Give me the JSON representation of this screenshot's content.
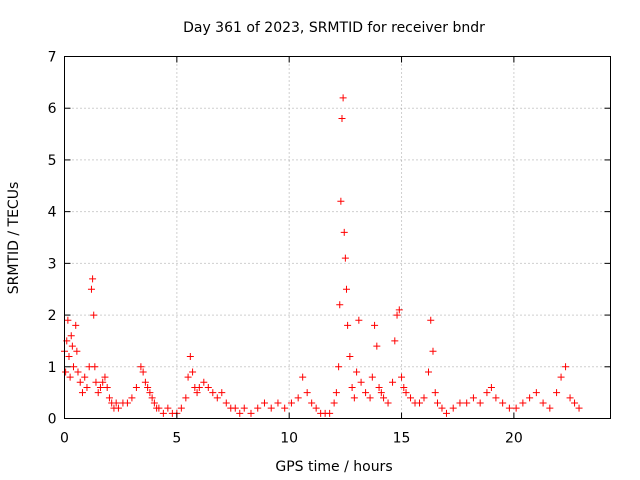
{
  "chart_data": {
    "type": "scatter",
    "title": "Day 361 of 2023, SRMTID for receiver bndr",
    "xlabel": "GPS time / hours",
    "ylabel": "SRMTID / TECUs",
    "xlim": [
      0,
      24.3
    ],
    "ylim": [
      0,
      7
    ],
    "xticks": [
      0,
      5,
      10,
      15,
      20
    ],
    "yticks": [
      0,
      1,
      2,
      3,
      4,
      5,
      6,
      7
    ],
    "xtick_labels": [
      "0",
      "5",
      "10",
      "15",
      "20"
    ],
    "ytick_labels": [
      "0",
      "1",
      "2",
      "3",
      "4",
      "5",
      "6",
      "7"
    ],
    "grid": true,
    "marker": "+",
    "color": "#ff0000",
    "series": [
      {
        "name": "bndr",
        "x": [
          0.0,
          0.05,
          0.1,
          0.15,
          0.2,
          0.25,
          0.3,
          0.35,
          0.4,
          0.5,
          0.55,
          0.6,
          0.7,
          0.8,
          0.9,
          1.0,
          1.1,
          1.2,
          1.25,
          1.3,
          1.35,
          1.4,
          1.5,
          1.6,
          1.7,
          1.8,
          1.9,
          2.0,
          2.1,
          2.2,
          2.3,
          2.4,
          2.6,
          2.8,
          3.0,
          3.2,
          3.4,
          3.5,
          3.6,
          3.7,
          3.8,
          3.9,
          4.0,
          4.1,
          4.2,
          4.4,
          4.6,
          4.8,
          5.0,
          5.2,
          5.4,
          5.5,
          5.6,
          5.7,
          5.8,
          5.9,
          6.0,
          6.2,
          6.4,
          6.6,
          6.8,
          7.0,
          7.2,
          7.4,
          7.6,
          7.8,
          8.0,
          8.3,
          8.6,
          8.9,
          9.2,
          9.5,
          9.8,
          10.1,
          10.4,
          10.6,
          10.8,
          11.0,
          11.2,
          11.4,
          11.6,
          11.8,
          12.0,
          12.1,
          12.2,
          12.25,
          12.3,
          12.35,
          12.4,
          12.45,
          12.5,
          12.55,
          12.6,
          12.7,
          12.8,
          12.9,
          13.0,
          13.1,
          13.2,
          13.4,
          13.6,
          13.7,
          13.8,
          13.9,
          14.0,
          14.1,
          14.2,
          14.4,
          14.6,
          14.7,
          14.8,
          14.9,
          15.0,
          15.1,
          15.2,
          15.4,
          15.6,
          15.8,
          16.0,
          16.2,
          16.3,
          16.4,
          16.5,
          16.6,
          16.8,
          17.0,
          17.3,
          17.6,
          17.9,
          18.2,
          18.5,
          18.8,
          19.0,
          19.2,
          19.5,
          19.8,
          20.1,
          20.4,
          20.7,
          21.0,
          21.3,
          21.6,
          21.9,
          22.1,
          22.3,
          22.5,
          22.7,
          22.9
        ],
        "y": [
          1.3,
          0.9,
          1.5,
          1.9,
          1.2,
          0.8,
          1.6,
          1.4,
          1.0,
          1.8,
          1.3,
          0.9,
          0.7,
          0.5,
          0.8,
          0.6,
          1.0,
          2.5,
          2.7,
          2.0,
          1.0,
          0.7,
          0.5,
          0.6,
          0.7,
          0.8,
          0.6,
          0.4,
          0.3,
          0.2,
          0.3,
          0.2,
          0.3,
          0.3,
          0.4,
          0.6,
          1.0,
          0.9,
          0.7,
          0.6,
          0.5,
          0.4,
          0.3,
          0.2,
          0.2,
          0.1,
          0.2,
          0.1,
          0.1,
          0.2,
          0.4,
          0.8,
          1.2,
          0.9,
          0.6,
          0.5,
          0.6,
          0.7,
          0.6,
          0.5,
          0.4,
          0.5,
          0.3,
          0.2,
          0.2,
          0.1,
          0.2,
          0.1,
          0.2,
          0.3,
          0.2,
          0.3,
          0.2,
          0.3,
          0.4,
          0.8,
          0.5,
          0.3,
          0.2,
          0.1,
          0.1,
          0.1,
          0.3,
          0.5,
          1.0,
          2.2,
          4.2,
          5.8,
          6.2,
          3.6,
          3.1,
          2.5,
          1.8,
          1.2,
          0.6,
          0.4,
          0.9,
          1.9,
          0.7,
          0.5,
          0.4,
          0.8,
          1.8,
          1.4,
          0.6,
          0.5,
          0.4,
          0.3,
          0.7,
          1.5,
          2.0,
          2.1,
          0.8,
          0.6,
          0.5,
          0.4,
          0.3,
          0.3,
          0.4,
          0.9,
          1.9,
          1.3,
          0.5,
          0.3,
          0.2,
          0.1,
          0.2,
          0.3,
          0.3,
          0.4,
          0.3,
          0.5,
          0.6,
          0.4,
          0.3,
          0.2,
          0.2,
          0.3,
          0.4,
          0.5,
          0.3,
          0.2,
          0.5,
          0.8,
          1.0,
          0.4,
          0.3,
          0.2
        ]
      }
    ]
  }
}
